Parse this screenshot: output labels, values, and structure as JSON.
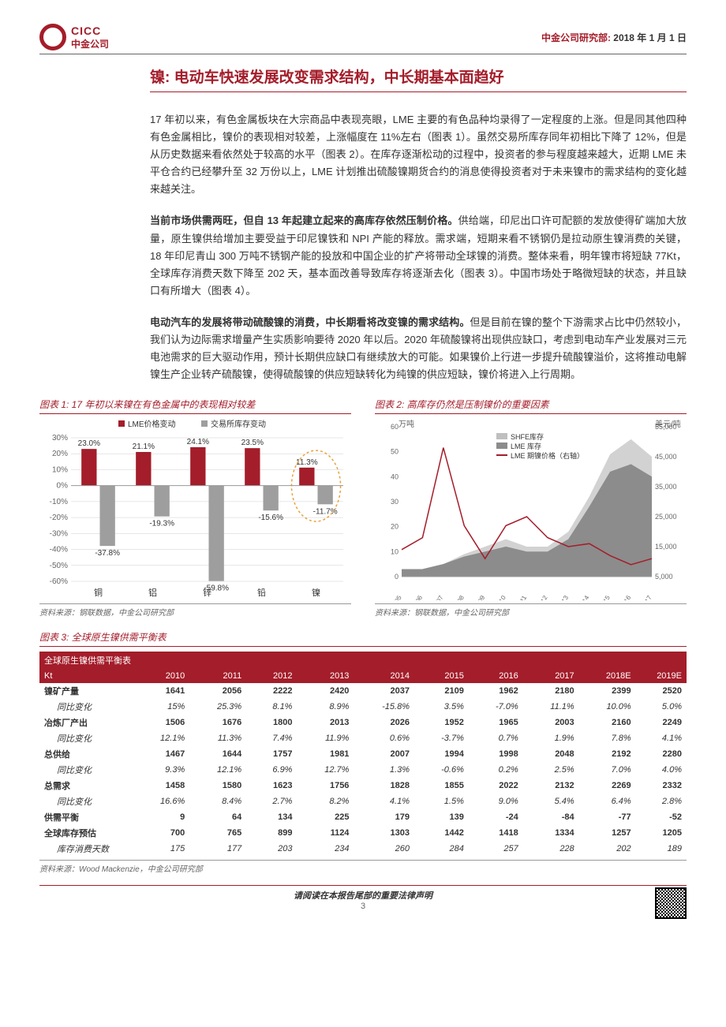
{
  "header": {
    "logo_en": "CICC",
    "logo_cn": "中金公司",
    "dept": "中金公司研究部: ",
    "date": "2018 年 1 月 1 日"
  },
  "title": "镍: 电动车快速发展改变需求结构，中长期基本面趋好",
  "para1": "17 年初以来，有色金属板块在大宗商品中表现亮眼，LME 主要的有色品种均录得了一定程度的上涨。但是同其他四种有色金属相比，镍价的表现相对较差，上涨幅度在 11%左右（图表 1）。虽然交易所库存同年初相比下降了 12%，但是从历史数据来看依然处于较高的水平（图表 2）。在库存逐渐松动的过程中，投资者的参与程度越来越大，近期 LME 未平仓合约已经攀升至 32 万份以上，LME 计划推出硫酸镍期货合约的消息使得投资者对于未来镍市的需求结构的变化越来越关注。",
  "para2_bold": "当前市场供需两旺，但自 13 年起建立起来的高库存依然压制价格。",
  "para2_rest": "供给端，印尼出口许可配额的发放使得矿端加大放量，原生镍供给增加主要受益于印尼镍铁和 NPI 产能的释放。需求端，短期来看不锈钢仍是拉动原生镍消费的关键，18 年印尼青山 300 万吨不锈钢产能的投放和中国企业的扩产将带动全球镍的消费。整体来看，明年镍市将短缺 77Kt，全球库存消费天数下降至 202 天，基本面改善导致库存将逐渐去化（图表 3）。中国市场处于略微短缺的状态，并且缺口有所增大（图表 4）。",
  "para3_bold": "电动汽车的发展将带动硫酸镍的消费，中长期看将改变镍的需求结构。",
  "para3_rest": "但是目前在镍的整个下游需求占比中仍然较小，我们认为边际需求增量产生实质影响要待 2020 年以后。2020 年硫酸镍将出现供应缺口，考虑到电动车产业发展对三元电池需求的巨大驱动作用，预计长期供应缺口有继续放大的可能。如果镍价上行进一步提升硫酸镍溢价，这将推动电解镍生产企业转产硫酸镍，使得硫酸镍的供应短缺转化为纯镍的供应短缺，镍价将进入上行周期。",
  "chart1": {
    "title": "图表 1: 17 年初以来镍在有色金属中的表现相对较差",
    "type": "bar",
    "legend": [
      "LME价格变动",
      "交易所库存变动"
    ],
    "legend_colors": [
      "#a41d2a",
      "#9e9e9e"
    ],
    "categories": [
      "铜",
      "铝",
      "锌",
      "铅",
      "镍"
    ],
    "series_price": [
      23.0,
      21.1,
      24.1,
      23.5,
      11.3
    ],
    "series_inventory": [
      -37.8,
      -19.3,
      -59.8,
      -15.6,
      -11.7
    ],
    "ylim": [
      -60,
      30
    ],
    "ytick_step": 10,
    "highlight_index": 4,
    "highlight_color": "#e8a23a",
    "grid_color": "#cfcfcf",
    "label_fontsize": 10,
    "source": "资料来源：钢联数据，中金公司研究部"
  },
  "chart2": {
    "title": "图表 2: 高库存仍然是压制镍价的重要因素",
    "type": "combo",
    "left_label": "万吨",
    "right_label": "美元/吨",
    "legend": [
      "SHFE库存",
      "LME 库存",
      "LME 期镍价格（右轴）"
    ],
    "legend_colors": [
      "#bfbfbf",
      "#8c8c8c",
      "#a41d2a"
    ],
    "x_labels": [
      "Jan-05",
      "Jan-06",
      "Jan-07",
      "Jan-08",
      "Jan-09",
      "Jan-10",
      "Jan-11",
      "Jan-12",
      "Jan-13",
      "Jan-14",
      "Jan-15",
      "Jan-16",
      "Jan-17"
    ],
    "left_ylim": [
      0,
      60
    ],
    "left_step": 10,
    "right_ylim": [
      5000,
      55000
    ],
    "right_step": 10000,
    "source": "资料来源：钢联数据，中金公司研究部"
  },
  "table": {
    "title": "图表 3: 全球原生镍供需平衡表",
    "header_label": "全球原生镍供需平衡表",
    "unit": "Kt",
    "columns": [
      "2010",
      "2011",
      "2012",
      "2013",
      "2014",
      "2015",
      "2016",
      "2017",
      "2018E",
      "2019E"
    ],
    "rows": [
      {
        "label": "镍矿产量",
        "bold": true,
        "values": [
          "1641",
          "2056",
          "2222",
          "2420",
          "2037",
          "2109",
          "1962",
          "2180",
          "2399",
          "2520"
        ]
      },
      {
        "label": "同比变化",
        "italic": true,
        "values": [
          "15%",
          "25.3%",
          "8.1%",
          "8.9%",
          "-15.8%",
          "3.5%",
          "-7.0%",
          "11.1%",
          "10.0%",
          "5.0%"
        ]
      },
      {
        "label": "冶炼厂产出",
        "bold": true,
        "values": [
          "1506",
          "1676",
          "1800",
          "2013",
          "2026",
          "1952",
          "1965",
          "2003",
          "2160",
          "2249"
        ]
      },
      {
        "label": "同比变化",
        "italic": true,
        "values": [
          "12.1%",
          "11.3%",
          "7.4%",
          "11.9%",
          "0.6%",
          "-3.7%",
          "0.7%",
          "1.9%",
          "7.8%",
          "4.1%"
        ]
      },
      {
        "label": "总供给",
        "bold": true,
        "values": [
          "1467",
          "1644",
          "1757",
          "1981",
          "2007",
          "1994",
          "1998",
          "2048",
          "2192",
          "2280"
        ]
      },
      {
        "label": "同比变化",
        "italic": true,
        "values": [
          "9.3%",
          "12.1%",
          "6.9%",
          "12.7%",
          "1.3%",
          "-0.6%",
          "0.2%",
          "2.5%",
          "7.0%",
          "4.0%"
        ]
      },
      {
        "label": "总需求",
        "bold": true,
        "values": [
          "1458",
          "1580",
          "1623",
          "1756",
          "1828",
          "1855",
          "2022",
          "2132",
          "2269",
          "2332"
        ]
      },
      {
        "label": "同比变化",
        "italic": true,
        "values": [
          "16.6%",
          "8.4%",
          "2.7%",
          "8.2%",
          "4.1%",
          "1.5%",
          "9.0%",
          "5.4%",
          "6.4%",
          "2.8%"
        ]
      },
      {
        "label": "供需平衡",
        "bold": true,
        "values": [
          "9",
          "64",
          "134",
          "225",
          "179",
          "139",
          "-24",
          "-84",
          "-77",
          "-52"
        ]
      },
      {
        "label": "全球库存预估",
        "bold": true,
        "values": [
          "700",
          "765",
          "899",
          "1124",
          "1303",
          "1442",
          "1418",
          "1334",
          "1257",
          "1205"
        ]
      },
      {
        "label": "库存消费天数",
        "italic": true,
        "values": [
          "175",
          "177",
          "203",
          "234",
          "260",
          "284",
          "257",
          "228",
          "202",
          "189"
        ]
      }
    ],
    "source": "资料来源：Wood Mackenzie，中金公司研究部"
  },
  "footer": {
    "disclaimer": "请阅读在本报告尾部的重要法律声明",
    "page": "3"
  }
}
